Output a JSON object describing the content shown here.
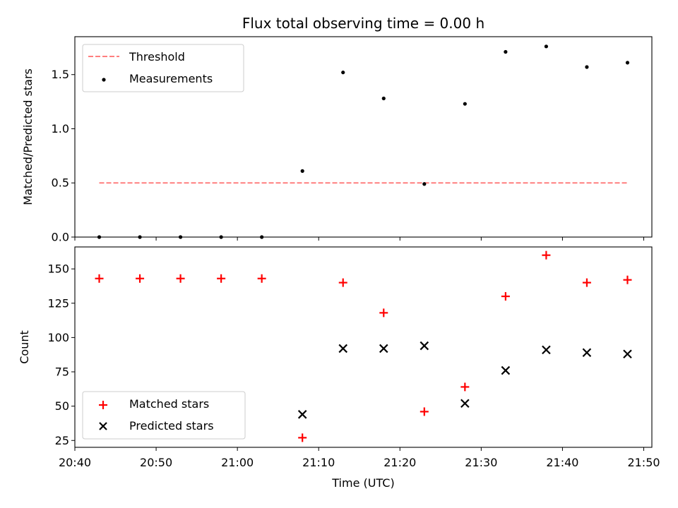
{
  "chart_data": [
    {
      "type": "scatter",
      "title": "Flux total observing time = 0.00 h",
      "xlabel": "",
      "ylabel": "Matched/Predicted stars",
      "ylim": [
        0,
        1.85
      ],
      "yticks": [
        0.0,
        0.5,
        1.0,
        1.5
      ],
      "ytick_labels": [
        "0.0",
        "0.5",
        "1.0",
        "1.5"
      ],
      "xlim": [
        "20:40",
        "21:51"
      ],
      "legend_position": "top-left",
      "grid": false,
      "series": [
        {
          "name": "Threshold",
          "kind": "line",
          "style": "dashed",
          "color": "#ff7f7f",
          "x": [
            "20:43",
            "21:48"
          ],
          "y": [
            0.5,
            0.5
          ]
        },
        {
          "name": "Measurements",
          "kind": "scatter",
          "marker": "dot",
          "color": "#000000",
          "x": [
            "20:43",
            "20:48",
            "20:53",
            "20:58",
            "21:03",
            "21:08",
            "21:13",
            "21:18",
            "21:23",
            "21:28",
            "21:33",
            "21:38",
            "21:43",
            "21:48"
          ],
          "y": [
            0.0,
            0.0,
            0.0,
            0.0,
            0.0,
            0.61,
            1.52,
            1.28,
            0.49,
            1.23,
            1.71,
            1.76,
            1.57,
            1.61
          ]
        }
      ]
    },
    {
      "type": "scatter",
      "title": "",
      "xlabel": "Time (UTC)",
      "ylabel": "Count",
      "ylim": [
        20,
        166
      ],
      "yticks": [
        25,
        50,
        75,
        100,
        125,
        150
      ],
      "ytick_labels": [
        "25",
        "50",
        "75",
        "100",
        "125",
        "150"
      ],
      "xlim": [
        "20:40",
        "21:51"
      ],
      "xticks": [
        "20:40",
        "20:50",
        "21:00",
        "21:10",
        "21:20",
        "21:30",
        "21:40",
        "21:50"
      ],
      "xtick_labels": [
        "20:40",
        "20:50",
        "21:00",
        "21:10",
        "21:20",
        "21:30",
        "21:40",
        "21:50"
      ],
      "legend_position": "bottom-left",
      "grid": false,
      "series": [
        {
          "name": "Matched stars",
          "kind": "scatter",
          "marker": "plus",
          "color": "#ff0000",
          "x": [
            "20:43",
            "20:48",
            "20:53",
            "20:58",
            "21:03",
            "21:08",
            "21:13",
            "21:18",
            "21:23",
            "21:28",
            "21:33",
            "21:38",
            "21:43",
            "21:48"
          ],
          "y": [
            143,
            143,
            143,
            143,
            143,
            27,
            140,
            118,
            46,
            64,
            130,
            160,
            140,
            142
          ]
        },
        {
          "name": "Predicted stars",
          "kind": "scatter",
          "marker": "x",
          "color": "#000000",
          "x": [
            "21:08",
            "21:13",
            "21:18",
            "21:23",
            "21:28",
            "21:33",
            "21:38",
            "21:43",
            "21:48"
          ],
          "y": [
            44,
            92,
            92,
            94,
            52,
            76,
            91,
            89,
            88
          ]
        }
      ]
    }
  ]
}
